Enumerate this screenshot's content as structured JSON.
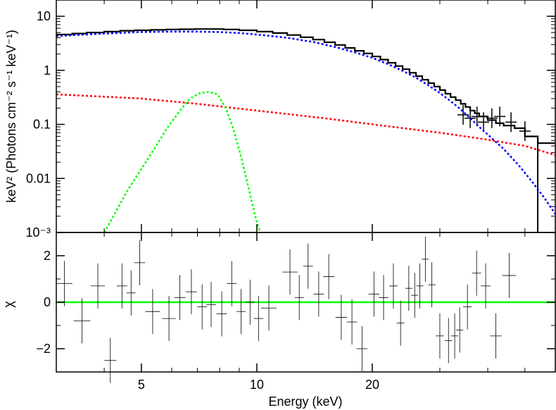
{
  "chart_data": [
    {
      "type": "line",
      "panel": "spectrum",
      "ylabel": "keV² (Photons cm⁻² s⁻¹ keV⁻¹)",
      "xscale": "log",
      "yscale": "log",
      "xlim": [
        3,
        60
      ],
      "ylim": [
        0.001,
        20
      ],
      "yticks": [
        {
          "value": 10,
          "label": "10"
        },
        {
          "value": 1,
          "label": "1"
        },
        {
          "value": 0.1,
          "label": "0.1"
        },
        {
          "value": 0.01,
          "label": "0.01"
        },
        {
          "value": 0.001,
          "label": "10⁻³"
        }
      ],
      "series": [
        {
          "style": "histogram",
          "color": "#000000",
          "x": [
            3,
            3.3,
            3.6,
            4,
            4.4,
            4.8,
            5.3,
            5.8,
            6.3,
            6.9,
            7.5,
            8.2,
            9,
            10,
            11,
            12,
            13,
            14,
            15,
            16,
            17,
            18,
            19,
            20,
            21,
            22,
            23,
            24,
            25,
            26,
            27,
            28,
            29,
            30,
            31,
            32,
            33,
            34,
            35,
            36,
            37,
            38,
            40,
            42,
            44,
            47,
            50,
            54,
            60
          ],
          "y": [
            4.6,
            4.8,
            5.0,
            5.2,
            5.4,
            5.5,
            5.6,
            5.7,
            5.75,
            5.8,
            5.8,
            5.7,
            5.5,
            5.2,
            4.9,
            4.5,
            4.1,
            3.7,
            3.3,
            2.95,
            2.6,
            2.3,
            2.05,
            1.8,
            1.58,
            1.38,
            1.2,
            1.05,
            0.9,
            0.78,
            0.67,
            0.58,
            0.5,
            0.43,
            0.37,
            0.32,
            0.28,
            0.24,
            0.21,
            0.18,
            0.16,
            0.14,
            0.12,
            0.105,
            0.095,
            0.085,
            0.06,
            0.045,
            0.04
          ]
        },
        {
          "style": "data-crosses",
          "color": "#000000",
          "x": [
            34.5,
            36,
            37.5,
            39,
            41,
            43,
            46,
            50
          ],
          "y": [
            0.15,
            0.13,
            0.14,
            0.11,
            0.13,
            0.14,
            0.11,
            0.075
          ]
        },
        {
          "style": "dashed",
          "color": "#0000ff",
          "x": [
            3,
            4,
            5,
            6,
            7,
            8,
            9,
            10,
            12,
            14,
            16,
            18,
            20,
            22,
            24,
            26,
            28,
            30,
            32,
            34,
            36,
            38,
            40,
            44,
            48,
            52,
            56,
            60
          ],
          "y": [
            4.3,
            4.8,
            5.1,
            5.2,
            5.2,
            5.1,
            4.9,
            4.6,
            4.0,
            3.35,
            2.7,
            2.15,
            1.7,
            1.3,
            0.98,
            0.73,
            0.53,
            0.38,
            0.27,
            0.19,
            0.13,
            0.09,
            0.065,
            0.035,
            0.018,
            0.009,
            0.0045,
            0.0022
          ]
        },
        {
          "style": "dashed",
          "color": "#ff0000",
          "x": [
            3,
            5,
            7,
            10,
            15,
            20,
            30,
            40,
            50,
            60
          ],
          "y": [
            0.36,
            0.3,
            0.24,
            0.18,
            0.13,
            0.1,
            0.07,
            0.052,
            0.04,
            0.027
          ]
        },
        {
          "style": "dashed",
          "color": "#00ff00",
          "x": [
            4.0,
            4.3,
            4.6,
            5.0,
            5.4,
            5.8,
            6.3,
            6.7,
            7.1,
            7.5,
            7.9,
            8.3,
            8.7,
            9.1,
            9.5,
            9.9,
            10.2
          ],
          "y": [
            0.001,
            0.0025,
            0.006,
            0.015,
            0.035,
            0.08,
            0.18,
            0.3,
            0.38,
            0.4,
            0.36,
            0.2,
            0.08,
            0.025,
            0.007,
            0.002,
            0.001
          ]
        }
      ]
    },
    {
      "type": "scatter",
      "panel": "residuals",
      "xlabel": "Energy (keV)",
      "ylabel": "χ",
      "xscale": "log",
      "xlim": [
        3,
        60
      ],
      "ylim": [
        -3,
        3
      ],
      "xticks": [
        {
          "value": 5,
          "label": "5"
        },
        {
          "value": 10,
          "label": "10"
        },
        {
          "value": 20,
          "label": "20"
        }
      ],
      "yticks": [
        {
          "value": 2,
          "label": "2"
        },
        {
          "value": 0,
          "label": "0"
        },
        {
          "value": -2,
          "label": "−2"
        }
      ],
      "zero_line": {
        "value": 0,
        "color": "#00ff00"
      },
      "residuals": [
        {
          "x": 3.15,
          "y": 0.8
        },
        {
          "x": 3.5,
          "y": -0.8
        },
        {
          "x": 3.85,
          "y": 0.7
        },
        {
          "x": 4.15,
          "y": -2.5
        },
        {
          "x": 4.45,
          "y": 0.7
        },
        {
          "x": 4.7,
          "y": 0.4
        },
        {
          "x": 4.95,
          "y": 1.7
        },
        {
          "x": 5.35,
          "y": -0.4
        },
        {
          "x": 5.9,
          "y": -0.7
        },
        {
          "x": 6.3,
          "y": 0.2
        },
        {
          "x": 6.75,
          "y": 0.45
        },
        {
          "x": 7.2,
          "y": -0.2
        },
        {
          "x": 7.6,
          "y": -0.1
        },
        {
          "x": 8.1,
          "y": -0.5
        },
        {
          "x": 8.6,
          "y": 0.8
        },
        {
          "x": 9.1,
          "y": -0.4
        },
        {
          "x": 9.6,
          "y": 0.0
        },
        {
          "x": 10.1,
          "y": -0.7
        },
        {
          "x": 10.75,
          "y": -0.25
        },
        {
          "x": 12.2,
          "y": 1.3
        },
        {
          "x": 12.9,
          "y": 0.2
        },
        {
          "x": 13.6,
          "y": 1.55
        },
        {
          "x": 14.5,
          "y": 0.35
        },
        {
          "x": 15.4,
          "y": 1.1
        },
        {
          "x": 16.6,
          "y": -0.65
        },
        {
          "x": 17.7,
          "y": -0.85
        },
        {
          "x": 18.8,
          "y": -2.0
        },
        {
          "x": 20.2,
          "y": 0.35
        },
        {
          "x": 21.4,
          "y": 0.2
        },
        {
          "x": 22.7,
          "y": 0.7
        },
        {
          "x": 23.7,
          "y": -0.9
        },
        {
          "x": 24.9,
          "y": 0.6
        },
        {
          "x": 25.8,
          "y": 0.3
        },
        {
          "x": 26.6,
          "y": 0.7
        },
        {
          "x": 27.5,
          "y": 1.85
        },
        {
          "x": 28.6,
          "y": 0.75
        },
        {
          "x": 30.0,
          "y": -1.45
        },
        {
          "x": 31.6,
          "y": -1.65
        },
        {
          "x": 32.8,
          "y": -1.45
        },
        {
          "x": 33.8,
          "y": -1.2
        },
        {
          "x": 35.4,
          "y": -0.2
        },
        {
          "x": 37.4,
          "y": 1.25
        },
        {
          "x": 39.5,
          "y": 0.7
        },
        {
          "x": 42.0,
          "y": -1.45
        },
        {
          "x": 45.5,
          "y": 1.15
        }
      ]
    }
  ]
}
